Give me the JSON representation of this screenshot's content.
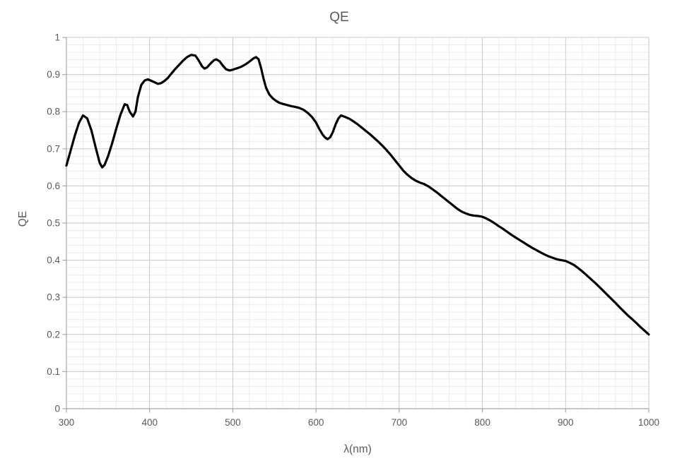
{
  "colors": {
    "background": "#ffffff",
    "line": "#000000",
    "title_text": "#595959",
    "tick_text": "#595959",
    "axis_line": "#a6a6a6",
    "major_grid": "#c9c9c9",
    "minor_grid": "#ececec"
  },
  "chart_data": {
    "type": "line",
    "title": "QE",
    "xlabel": "λ(nm)",
    "ylabel": "QE",
    "xlim": [
      300,
      1000
    ],
    "ylim": [
      0,
      1
    ],
    "grid": "major+minor",
    "legend_position": "none",
    "x_minor_step": 20,
    "y_minor_step": 0.02,
    "axes": {
      "x": {
        "tick_values": [
          300,
          400,
          500,
          600,
          700,
          800,
          900,
          1000
        ],
        "tick_labels": [
          "300",
          "400",
          "500",
          "600",
          "700",
          "800",
          "900",
          "1000"
        ]
      },
      "y": {
        "tick_values": [
          0,
          0.1,
          0.2,
          0.3,
          0.4,
          0.5,
          0.6,
          0.7,
          0.8,
          0.9,
          1
        ],
        "tick_labels": [
          "0",
          "0.1",
          "0.2",
          "0.3",
          "0.4",
          "0.5",
          "0.6",
          "0.7",
          "0.8",
          "0.9",
          "1"
        ]
      }
    },
    "series": [
      {
        "name": "QE",
        "color": "#000000",
        "points": [
          [
            300,
            0.655
          ],
          [
            305,
            0.695
          ],
          [
            310,
            0.735
          ],
          [
            315,
            0.77
          ],
          [
            320,
            0.79
          ],
          [
            325,
            0.782
          ],
          [
            330,
            0.75
          ],
          [
            335,
            0.705
          ],
          [
            340,
            0.662
          ],
          [
            343,
            0.65
          ],
          [
            346,
            0.657
          ],
          [
            350,
            0.68
          ],
          [
            355,
            0.715
          ],
          [
            360,
            0.755
          ],
          [
            365,
            0.792
          ],
          [
            370,
            0.82
          ],
          [
            373,
            0.818
          ],
          [
            376,
            0.8
          ],
          [
            380,
            0.787
          ],
          [
            383,
            0.8
          ],
          [
            386,
            0.84
          ],
          [
            390,
            0.872
          ],
          [
            394,
            0.884
          ],
          [
            398,
            0.887
          ],
          [
            402,
            0.883
          ],
          [
            406,
            0.879
          ],
          [
            410,
            0.875
          ],
          [
            414,
            0.877
          ],
          [
            418,
            0.883
          ],
          [
            422,
            0.891
          ],
          [
            426,
            0.902
          ],
          [
            430,
            0.913
          ],
          [
            435,
            0.925
          ],
          [
            440,
            0.937
          ],
          [
            445,
            0.947
          ],
          [
            450,
            0.953
          ],
          [
            455,
            0.951
          ],
          [
            459,
            0.938
          ],
          [
            463,
            0.922
          ],
          [
            466,
            0.916
          ],
          [
            469,
            0.919
          ],
          [
            473,
            0.929
          ],
          [
            477,
            0.938
          ],
          [
            480,
            0.941
          ],
          [
            484,
            0.936
          ],
          [
            488,
            0.924
          ],
          [
            492,
            0.914
          ],
          [
            496,
            0.911
          ],
          [
            500,
            0.913
          ],
          [
            505,
            0.917
          ],
          [
            510,
            0.921
          ],
          [
            515,
            0.927
          ],
          [
            520,
            0.935
          ],
          [
            525,
            0.944
          ],
          [
            528,
            0.947
          ],
          [
            531,
            0.941
          ],
          [
            534,
            0.917
          ],
          [
            537,
            0.888
          ],
          [
            540,
            0.864
          ],
          [
            544,
            0.846
          ],
          [
            548,
            0.836
          ],
          [
            552,
            0.829
          ],
          [
            556,
            0.824
          ],
          [
            560,
            0.821
          ],
          [
            565,
            0.818
          ],
          [
            570,
            0.815
          ],
          [
            575,
            0.813
          ],
          [
            580,
            0.81
          ],
          [
            585,
            0.805
          ],
          [
            590,
            0.797
          ],
          [
            595,
            0.786
          ],
          [
            600,
            0.771
          ],
          [
            604,
            0.753
          ],
          [
            608,
            0.738
          ],
          [
            611,
            0.73
          ],
          [
            614,
            0.726
          ],
          [
            617,
            0.731
          ],
          [
            620,
            0.744
          ],
          [
            624,
            0.768
          ],
          [
            627,
            0.782
          ],
          [
            630,
            0.79
          ],
          [
            635,
            0.786
          ],
          [
            640,
            0.781
          ],
          [
            645,
            0.774
          ],
          [
            650,
            0.766
          ],
          [
            655,
            0.757
          ],
          [
            660,
            0.748
          ],
          [
            665,
            0.739
          ],
          [
            670,
            0.729
          ],
          [
            675,
            0.719
          ],
          [
            680,
            0.708
          ],
          [
            685,
            0.696
          ],
          [
            690,
            0.683
          ],
          [
            695,
            0.669
          ],
          [
            700,
            0.655
          ],
          [
            705,
            0.641
          ],
          [
            710,
            0.63
          ],
          [
            715,
            0.621
          ],
          [
            720,
            0.614
          ],
          [
            725,
            0.609
          ],
          [
            730,
            0.605
          ],
          [
            735,
            0.599
          ],
          [
            740,
            0.591
          ],
          [
            745,
            0.583
          ],
          [
            750,
            0.574
          ],
          [
            755,
            0.565
          ],
          [
            760,
            0.556
          ],
          [
            765,
            0.547
          ],
          [
            770,
            0.538
          ],
          [
            775,
            0.531
          ],
          [
            780,
            0.526
          ],
          [
            785,
            0.522
          ],
          [
            790,
            0.52
          ],
          [
            795,
            0.519
          ],
          [
            800,
            0.517
          ],
          [
            805,
            0.512
          ],
          [
            810,
            0.506
          ],
          [
            815,
            0.499
          ],
          [
            820,
            0.491
          ],
          [
            825,
            0.484
          ],
          [
            830,
            0.476
          ],
          [
            835,
            0.468
          ],
          [
            840,
            0.461
          ],
          [
            845,
            0.454
          ],
          [
            850,
            0.447
          ],
          [
            855,
            0.44
          ],
          [
            860,
            0.433
          ],
          [
            865,
            0.427
          ],
          [
            870,
            0.421
          ],
          [
            875,
            0.415
          ],
          [
            880,
            0.41
          ],
          [
            885,
            0.406
          ],
          [
            890,
            0.402
          ],
          [
            895,
            0.4
          ],
          [
            900,
            0.398
          ],
          [
            905,
            0.393
          ],
          [
            910,
            0.387
          ],
          [
            915,
            0.379
          ],
          [
            920,
            0.37
          ],
          [
            925,
            0.36
          ],
          [
            930,
            0.35
          ],
          [
            935,
            0.34
          ],
          [
            940,
            0.329
          ],
          [
            945,
            0.318
          ],
          [
            950,
            0.307
          ],
          [
            955,
            0.296
          ],
          [
            960,
            0.285
          ],
          [
            965,
            0.273
          ],
          [
            970,
            0.262
          ],
          [
            975,
            0.251
          ],
          [
            980,
            0.241
          ],
          [
            985,
            0.231
          ],
          [
            990,
            0.22
          ],
          [
            995,
            0.21
          ],
          [
            1000,
            0.2
          ]
        ]
      }
    ]
  }
}
